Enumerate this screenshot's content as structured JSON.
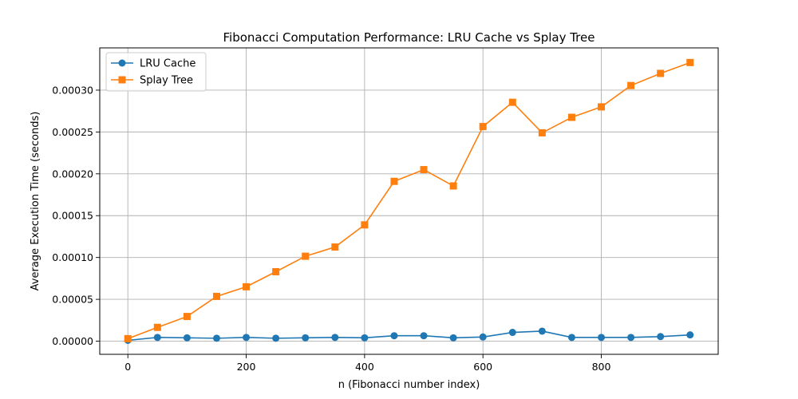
{
  "chart_data": {
    "type": "line",
    "title": "Fibonacci Computation Performance: LRU Cache vs Splay Tree",
    "xlabel": "n (Fibonacci number index)",
    "ylabel": "Average Execution Time (seconds)",
    "xlim": [
      -47.5,
      997.5
    ],
    "ylim": [
      -1.57e-05,
      0.0003505
    ],
    "x_ticks": [
      0,
      200,
      400,
      600,
      800
    ],
    "x_tick_labels": [
      "0",
      "200",
      "400",
      "600",
      "800"
    ],
    "y_ticks": [
      0,
      5e-05,
      0.0001,
      0.00015,
      0.0002,
      0.00025,
      0.0003
    ],
    "y_tick_labels": [
      "0.00000",
      "0.00005",
      "0.00010",
      "0.00015",
      "0.00020",
      "0.00025",
      "0.00030"
    ],
    "grid": true,
    "legend_position": "top-left",
    "x": [
      0,
      50,
      100,
      150,
      200,
      250,
      300,
      350,
      400,
      450,
      500,
      550,
      600,
      650,
      700,
      750,
      800,
      850,
      900,
      950
    ],
    "series": [
      {
        "name": "LRU Cache",
        "marker": "circle",
        "color": "#1f77b4",
        "values": [
          1e-06,
          4.5e-06,
          4e-06,
          3.5e-06,
          4.5e-06,
          3.5e-06,
          4e-06,
          4.5e-06,
          4e-06,
          6.5e-06,
          6.5e-06,
          4e-06,
          5e-06,
          1.05e-05,
          1.2e-05,
          4.5e-06,
          4.5e-06,
          4.5e-06,
          5.5e-06,
          7.5e-06
        ]
      },
      {
        "name": "Splay Tree",
        "marker": "square",
        "color": "#ff7f0e",
        "values": [
          3e-06,
          1.65e-05,
          2.95e-05,
          5.35e-05,
          6.5e-05,
          8.3e-05,
          0.0001015,
          0.0001125,
          0.000139,
          0.000191,
          0.000205,
          0.0001855,
          0.0002565,
          0.0002855,
          0.000249,
          0.0002675,
          0.00028,
          0.0003055,
          0.00032,
          0.000333
        ]
      }
    ]
  }
}
